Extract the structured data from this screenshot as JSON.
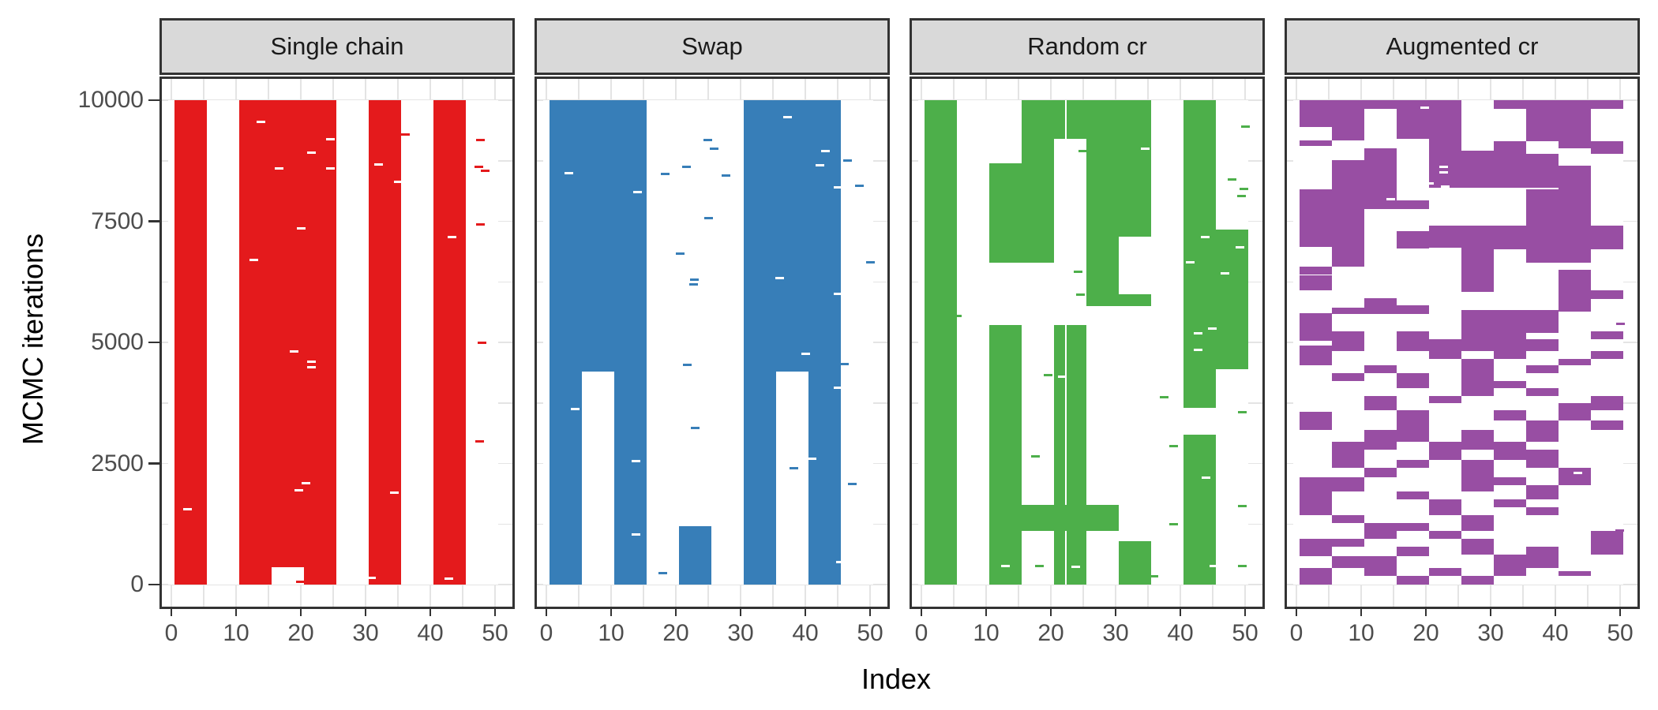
{
  "chart_data": {
    "type": "heatmap",
    "title": "",
    "xlabel": "Index",
    "ylabel": "MCMC iterations",
    "x_ticks": [
      0,
      10,
      20,
      30,
      40,
      50
    ],
    "y_ticks": [
      0,
      2500,
      5000,
      7500,
      10000
    ],
    "xlim": [
      -0.5,
      50.5
    ],
    "ylim": [
      0,
      10000
    ],
    "grid": {
      "x_step": 5,
      "y_step": 1250,
      "on": true,
      "color": "#e4e4e4"
    },
    "legend": "none",
    "description": "Binary inclusion state of 51 indices (colored = included) across 10000 MCMC iterations, one facet per sampler",
    "panels": [
      {
        "label": "Single chain",
        "color": "#E41A1C",
        "rects": [
          [
            0.5,
            5.5,
            0,
            10000
          ],
          [
            10.5,
            25.5,
            0,
            10000
          ],
          [
            30.5,
            35.5,
            0,
            10000
          ],
          [
            40.5,
            45.5,
            0,
            10000
          ]
        ],
        "holes": [
          [
            15.5,
            20.5,
            0,
            360
          ]
        ],
        "hole_dashes": [
          [
            13.8,
            9560
          ],
          [
            24.6,
            9200
          ],
          [
            21.7,
            8910
          ],
          [
            16.7,
            8590
          ],
          [
            24.6,
            8590
          ],
          [
            32,
            8680
          ],
          [
            35,
            8320
          ],
          [
            20,
            7350
          ],
          [
            43.3,
            7180
          ],
          [
            12.8,
            6700
          ],
          [
            19,
            4820
          ],
          [
            21.6,
            4600
          ],
          [
            21.6,
            4480
          ],
          [
            20.8,
            2100
          ],
          [
            19.7,
            1950
          ],
          [
            34.5,
            1900
          ],
          [
            2.5,
            1550
          ],
          [
            30.9,
            145
          ],
          [
            42.9,
            120
          ]
        ],
        "specks": [
          [
            36.2,
            9290
          ],
          [
            47.8,
            9170
          ],
          [
            47.5,
            8620
          ],
          [
            48.5,
            8550
          ],
          [
            47.8,
            7430
          ],
          [
            48,
            5000
          ],
          [
            47.6,
            2950
          ],
          [
            19.9,
            65
          ]
        ]
      },
      {
        "label": "Swap",
        "color": "#377EB8",
        "rects": [
          [
            0.5,
            15.5,
            4400,
            10000
          ],
          [
            0.5,
            5.5,
            0,
            4400
          ],
          [
            10.5,
            15.5,
            0,
            4400
          ],
          [
            20.5,
            25.5,
            0,
            1200
          ],
          [
            30.5,
            45.5,
            4400,
            10000
          ],
          [
            30.5,
            35.5,
            0,
            4400
          ],
          [
            40.5,
            45.5,
            0,
            4400
          ]
        ],
        "holes": [],
        "hole_dashes": [
          [
            3.5,
            8500
          ],
          [
            14.1,
            8100
          ],
          [
            37.2,
            9645
          ],
          [
            43.1,
            8945
          ],
          [
            42.2,
            8650
          ],
          [
            45,
            8195
          ],
          [
            36,
            6320
          ],
          [
            45,
            6000
          ],
          [
            40,
            4770
          ],
          [
            45,
            4060
          ],
          [
            4.4,
            3620
          ],
          [
            13.9,
            2550
          ],
          [
            41,
            2600
          ],
          [
            45.4,
            470
          ],
          [
            13.9,
            1030
          ]
        ],
        "specks": [
          [
            24.9,
            9170
          ],
          [
            25.9,
            9000
          ],
          [
            21.6,
            8620
          ],
          [
            18.3,
            8470
          ],
          [
            27.8,
            8450
          ],
          [
            25.1,
            7570
          ],
          [
            20.7,
            6840
          ],
          [
            50.1,
            6660
          ],
          [
            22.9,
            6300
          ],
          [
            22.7,
            6190
          ],
          [
            21.8,
            4530
          ],
          [
            46,
            4560
          ],
          [
            23,
            3240
          ],
          [
            47.2,
            2080
          ],
          [
            38.2,
            2410
          ],
          [
            18,
            230
          ],
          [
            46.5,
            8760
          ],
          [
            48.4,
            8240
          ]
        ]
      },
      {
        "label": "Random cr",
        "color": "#4DAF4A",
        "rects": [
          [
            0.5,
            5.5,
            0,
            10000
          ],
          [
            15.5,
            22.2,
            9200,
            10000
          ],
          [
            22.45,
            35.5,
            9200,
            10000
          ],
          [
            15.5,
            20.5,
            8700,
            9200
          ],
          [
            25.5,
            35.5,
            8700,
            9200
          ],
          [
            10.5,
            20.5,
            6650,
            8700
          ],
          [
            25.5,
            30.5,
            5750,
            8700
          ],
          [
            30.5,
            35.5,
            7180,
            8700
          ],
          [
            30.5,
            35.5,
            5750,
            6000
          ],
          [
            40.5,
            45.5,
            3650,
            10000
          ],
          [
            45.5,
            50.5,
            4450,
            7330
          ],
          [
            40.5,
            45.5,
            0,
            3100
          ],
          [
            10.5,
            15.5,
            0,
            5360
          ],
          [
            20.5,
            22.2,
            0,
            5360
          ],
          [
            22.45,
            25.5,
            0,
            5360
          ],
          [
            15.5,
            30.5,
            1100,
            1650
          ],
          [
            30.5,
            35.5,
            0,
            890
          ]
        ],
        "holes": [],
        "hole_dashes": [
          [
            43.9,
            7180
          ],
          [
            41.5,
            6650
          ],
          [
            49.2,
            6960
          ],
          [
            46.9,
            6420
          ],
          [
            44.9,
            5290
          ],
          [
            42.8,
            5180
          ],
          [
            42.8,
            4850
          ],
          [
            21.8,
            4290
          ],
          [
            44,
            2200
          ],
          [
            13,
            380
          ],
          [
            23.9,
            365
          ],
          [
            45.2,
            385
          ],
          [
            34.6,
            9000
          ]
        ],
        "specks": [
          [
            24.9,
            8950
          ],
          [
            5.6,
            5545
          ],
          [
            24.2,
            6450
          ],
          [
            24.6,
            5990
          ],
          [
            19.6,
            4320
          ],
          [
            17.6,
            2645
          ],
          [
            18.2,
            380
          ],
          [
            35.9,
            170
          ],
          [
            37.5,
            3870
          ],
          [
            39,
            2855
          ],
          [
            39,
            1240
          ],
          [
            50,
            9450
          ],
          [
            48,
            8360
          ],
          [
            49.8,
            8160
          ],
          [
            49.4,
            8020
          ],
          [
            49.6,
            3560
          ],
          [
            49.6,
            1620
          ],
          [
            49.6,
            385
          ]
        ]
      },
      {
        "label": "Augmented cr",
        "color": "#984EA3",
        "rects": [],
        "columns": [
          {
            "x": [
              0.5,
              5.5
            ],
            "runs": [
              [
                9440,
                10000
              ],
              [
                9060,
                9170
              ],
              [
                6970,
                8160
              ],
              [
                6400,
                6560
              ],
              [
                6070,
                6380
              ],
              [
                5040,
                5610
              ],
              [
                4520,
                4930
              ],
              [
                3190,
                3570
              ],
              [
                1430,
                2215
              ],
              [
                590,
                940
              ],
              [
                0,
                340
              ]
            ]
          },
          {
            "x": [
              5.5,
              10.5
            ],
            "runs": [
              [
                9165,
                10000
              ],
              [
                6560,
                8760
              ],
              [
                5580,
                5720
              ],
              [
                4820,
                5230
              ],
              [
                4200,
                4360
              ],
              [
                2405,
                2950
              ],
              [
                1915,
                2215
              ],
              [
                1265,
                1430
              ],
              [
                775,
                940
              ],
              [
                340,
                590
              ]
            ]
          },
          {
            "x": [
              10.5,
              15.5
            ],
            "runs": [
              [
                9820,
                10000
              ],
              [
                7755,
                9000
              ],
              [
                5580,
                5910
              ],
              [
                4360,
                4520
              ],
              [
                3600,
                3900
              ],
              [
                2785,
                3190
              ],
              [
                2215,
                2405
              ],
              [
                940,
                1265
              ],
              [
                180,
                590
              ]
            ]
          },
          {
            "x": [
              15.5,
              20.5
            ],
            "runs": [
              [
                9200,
                10000
              ],
              [
                7755,
                7930
              ],
              [
                6940,
                7290
              ],
              [
                5580,
                5770
              ],
              [
                4820,
                5230
              ],
              [
                4060,
                4360
              ],
              [
                2950,
                3600
              ],
              [
                2405,
                2570
              ],
              [
                1755,
                1915
              ],
              [
                1100,
                1265
              ],
              [
                590,
                775
              ],
              [
                0,
                180
              ]
            ]
          },
          {
            "x": [
              20.5,
              25.5
            ],
            "runs": [
              [
                8185,
                10000
              ],
              [
                6950,
                7415
              ],
              [
                4660,
                5070
              ],
              [
                3740,
                3900
              ],
              [
                2570,
                2950
              ],
              [
                1430,
                1755
              ],
              [
                940,
                1100
              ],
              [
                180,
                340
              ]
            ]
          },
          {
            "x": [
              25.5,
              30.5
            ],
            "runs": [
              [
                8185,
                8960
              ],
              [
                6045,
                7415
              ],
              [
                4820,
                5665
              ],
              [
                3900,
                4660
              ],
              [
                2785,
                3190
              ],
              [
                1915,
                2570
              ],
              [
                1100,
                1430
              ],
              [
                615,
                940
              ],
              [
                0,
                180
              ]
            ]
          },
          {
            "x": [
              30.5,
              35.5
            ],
            "runs": [
              [
                9820,
                10000
              ],
              [
                8185,
                9145
              ],
              [
                6925,
                7415
              ],
              [
                4660,
                5665
              ],
              [
                4060,
                4200
              ],
              [
                3385,
                3600
              ],
              [
                2570,
                2950
              ],
              [
                2050,
                2215
              ],
              [
                1590,
                1755
              ],
              [
                180,
                615
              ]
            ]
          },
          {
            "x": [
              35.5,
              40.5
            ],
            "runs": [
              [
                9145,
                10000
              ],
              [
                8185,
                8895
              ],
              [
                6640,
                8160
              ],
              [
                5200,
                5665
              ],
              [
                4820,
                5070
              ],
              [
                4360,
                4520
              ],
              [
                3900,
                4060
              ],
              [
                2950,
                3385
              ],
              [
                2405,
                2785
              ],
              [
                1755,
                2050
              ],
              [
                1430,
                1590
              ],
              [
                340,
                775
              ]
            ]
          },
          {
            "x": [
              40.5,
              45.5
            ],
            "runs": [
              [
                9000,
                10000
              ],
              [
                6640,
                8650
              ],
              [
                5640,
                6505
              ],
              [
                4520,
                4660
              ],
              [
                3385,
                3740
              ],
              [
                2050,
                2405
              ],
              [
                180,
                285
              ]
            ]
          },
          {
            "x": [
              45.5,
              50.5
            ],
            "runs": [
              [
                9820,
                10000
              ],
              [
                8895,
                9145
              ],
              [
                6925,
                7415
              ],
              [
                5900,
                6070
              ],
              [
                5070,
                5230
              ],
              [
                4660,
                4820
              ],
              [
                3600,
                3900
              ],
              [
                3190,
                3385
              ],
              [
                615,
                1100
              ]
            ]
          }
        ],
        "holes": [],
        "hole_dashes": [
          [
            22.8,
            8620
          ],
          [
            22.8,
            8510
          ],
          [
            23,
            8210
          ],
          [
            23,
            8160
          ],
          [
            19.8,
            9850
          ],
          [
            20.6,
            8280
          ],
          [
            14.6,
            7950
          ],
          [
            43.5,
            2300
          ]
        ],
        "specks": [
          [
            49.9,
            1120
          ],
          [
            50,
            5390
          ]
        ]
      }
    ]
  },
  "colors": {
    "strip_bg": "#d9d9d9",
    "panel_bg": "#ffffff",
    "border": "#333333",
    "grid": "#e4e4e4",
    "axis_text": "#4d4d4d",
    "title_text": "#000000"
  }
}
